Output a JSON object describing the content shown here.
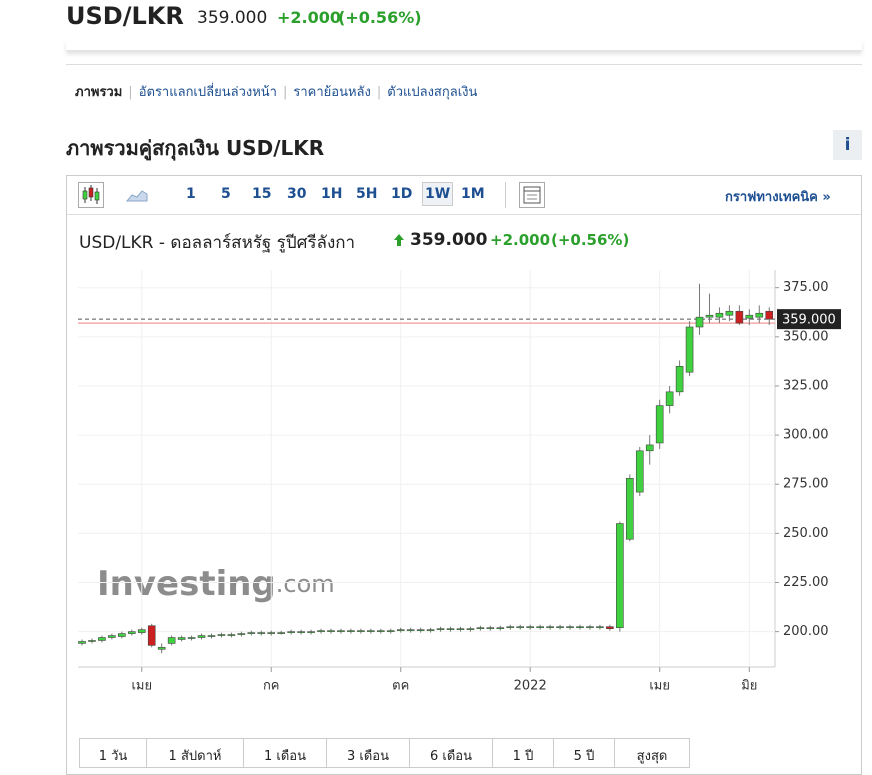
{
  "header": {
    "symbol": "USD/LKR",
    "price": "359.000",
    "change": "+2.000",
    "change_pct": "(+0.56%)"
  },
  "nav": [
    "ภาพรวม",
    "อัตราแลกเปลี่ยนล่วงหน้า",
    "ราคาย้อนหลัง",
    "ตัวแปลงสกุลเงิน"
  ],
  "section_title": "ภาพรวมคู่สกุลเงิน USD/LKR",
  "info_button": "i",
  "toolbar": {
    "intervals": [
      "1",
      "5",
      "15",
      "30",
      "1H",
      "5H",
      "1D",
      "1W",
      "1M"
    ],
    "technical_link": "กราฟทางเทคนิค »"
  },
  "chart_header": {
    "name": "USD/LKR - ดอลลาร์สหรัฐ รูปีศรีลังกา",
    "price": "359.000",
    "change": "+2.000",
    "change_pct": "(+0.56%)"
  },
  "watermark": [
    "Investing",
    ".com"
  ],
  "ranges": [
    "1 วัน",
    "1 สัปดาห์",
    "1 เดือน",
    "3 เดือน",
    "6 เดือน",
    "1 ปี",
    "5 ปี",
    "สูงสุด"
  ],
  "chart_data": {
    "type": "candlestick",
    "up_color": "#3fd13f",
    "down_color": "#cc2020",
    "categories": [
      null,
      null,
      null,
      null,
      null,
      null,
      "เมย",
      null,
      null,
      null,
      null,
      null,
      null,
      null,
      null,
      null,
      null,
      null,
      null,
      "กค",
      null,
      null,
      null,
      null,
      null,
      null,
      null,
      null,
      null,
      null,
      null,
      null,
      "ตค",
      null,
      null,
      null,
      null,
      null,
      null,
      null,
      null,
      null,
      null,
      null,
      null,
      "2022",
      null,
      null,
      null,
      null,
      null,
      null,
      null,
      null,
      null,
      null,
      null,
      null,
      "เมย",
      null,
      null,
      null,
      null,
      null,
      null,
      null,
      null,
      "มิย",
      null,
      null
    ],
    "open": [
      194,
      195,
      195.5,
      197,
      197.5,
      199,
      199.5,
      203,
      191,
      194,
      196,
      196.5,
      197,
      197.5,
      198,
      198,
      198.5,
      199,
      199,
      199,
      199.5,
      199.5,
      199.5,
      199.5,
      200,
      200,
      200,
      200,
      200,
      200,
      200,
      200,
      200.5,
      200.5,
      200.5,
      200.5,
      201,
      201,
      201,
      201,
      201.5,
      201.5,
      201.5,
      202,
      202,
      202,
      202,
      202,
      202,
      202,
      202,
      202,
      202,
      202.5,
      202,
      247,
      271,
      292,
      296,
      315,
      322,
      332,
      355,
      360,
      360,
      361,
      363,
      359.5,
      360,
      363
    ],
    "high": [
      196,
      196.5,
      198,
      199,
      200,
      201,
      202,
      204,
      194,
      198,
      198,
      198,
      199,
      199,
      199.5,
      199.5,
      200,
      200.5,
      200.5,
      200.5,
      200.5,
      201,
      201,
      201,
      201.5,
      201.5,
      201.5,
      201.5,
      201.5,
      201.5,
      201.5,
      201.5,
      202,
      202,
      202,
      202,
      202.5,
      202.5,
      202.5,
      202.5,
      203,
      203,
      203,
      203.5,
      203.5,
      203.5,
      203.5,
      203.5,
      203.5,
      203.5,
      203.5,
      203.5,
      203.5,
      203.5,
      256,
      280,
      294,
      300,
      318,
      325,
      338,
      358,
      377,
      372,
      365,
      366,
      366,
      364,
      366,
      365
    ],
    "low": [
      193,
      194,
      194.5,
      196,
      196.5,
      198,
      198.5,
      192,
      189,
      193,
      195,
      195.5,
      196,
      196.5,
      197,
      197,
      197.5,
      198,
      198,
      198,
      198.5,
      198.5,
      198.5,
      198.5,
      199,
      199,
      199,
      199,
      199,
      199,
      199,
      199,
      199.5,
      199.5,
      199.5,
      199.5,
      200,
      200,
      200,
      200,
      200.5,
      200.5,
      200.5,
      201,
      201,
      201,
      201,
      201,
      201,
      201,
      201,
      201,
      201,
      200.5,
      200,
      246,
      269,
      285,
      293,
      311,
      320,
      330,
      351,
      357,
      357,
      358,
      356,
      356,
      357,
      356
    ],
    "close": [
      195,
      195.5,
      197,
      198,
      199,
      200,
      201,
      193,
      192,
      197,
      197,
      197,
      198,
      198,
      198.5,
      198.5,
      199,
      199.5,
      199.5,
      199.5,
      199.5,
      200,
      200,
      200,
      200.5,
      200.5,
      200.5,
      200.5,
      200.5,
      200.5,
      200.5,
      200.5,
      201,
      201,
      201,
      201,
      201.5,
      201.5,
      201.5,
      201.5,
      202,
      202,
      202,
      202.5,
      202.5,
      202.5,
      202.5,
      202.5,
      202.5,
      202.5,
      202.5,
      202.5,
      202.5,
      201.5,
      255,
      278,
      292,
      295,
      315,
      322,
      335,
      355,
      360,
      361,
      362,
      363,
      357,
      361,
      362,
      359
    ],
    "ylim": [
      182,
      384
    ],
    "yticks": [
      {
        "value": 200,
        "label": "200.00"
      },
      {
        "value": 225,
        "label": "225.00"
      },
      {
        "value": 250,
        "label": "250.00"
      },
      {
        "value": 275,
        "label": "275.00"
      },
      {
        "value": 300,
        "label": "300.00"
      },
      {
        "value": 325,
        "label": "325.00"
      },
      {
        "value": 350,
        "label": "350.00"
      },
      {
        "value": 375,
        "label": "375.00"
      }
    ],
    "grid": true,
    "current_price": {
      "value": 359,
      "label": "359.000"
    },
    "reference_line": 357
  }
}
